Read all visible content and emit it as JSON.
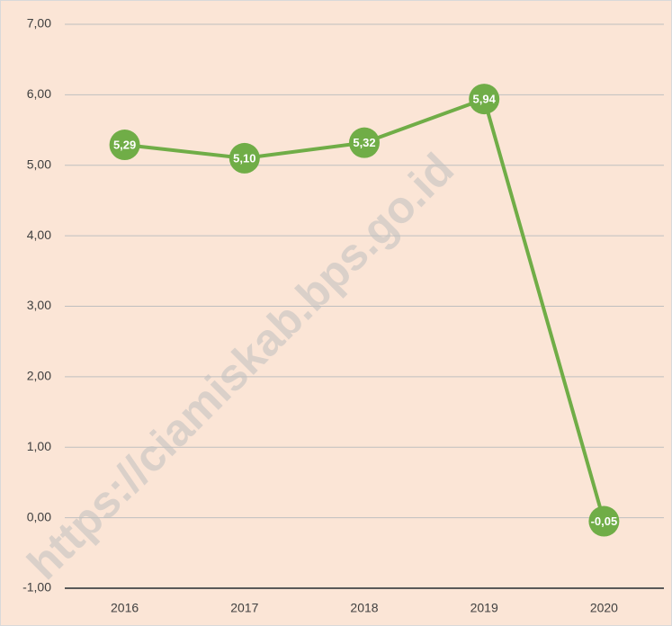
{
  "chart_data": {
    "type": "line",
    "watermark": "https://ciamiskab.bps.go.id",
    "categories": [
      "2016",
      "2017",
      "2018",
      "2019",
      "2020"
    ],
    "series": [
      {
        "color": "#70ad47",
        "values": [
          5.29,
          5.1,
          5.32,
          5.94,
          -0.05
        ],
        "value_labels": [
          "5,29",
          "5,10",
          "5,32",
          "5,94",
          "-0,05"
        ]
      }
    ],
    "ylim": [
      -1,
      7
    ],
    "yticks": [
      {
        "value": -1,
        "label": "-1,00"
      },
      {
        "value": 0,
        "label": "0,00"
      },
      {
        "value": 1,
        "label": "1,00"
      },
      {
        "value": 2,
        "label": "2,00"
      },
      {
        "value": 3,
        "label": "3,00"
      },
      {
        "value": 4,
        "label": "4,00"
      },
      {
        "value": 5,
        "label": "5,00"
      },
      {
        "value": 6,
        "label": "6,00"
      },
      {
        "value": 7,
        "label": "7,00"
      }
    ],
    "grid": true
  }
}
